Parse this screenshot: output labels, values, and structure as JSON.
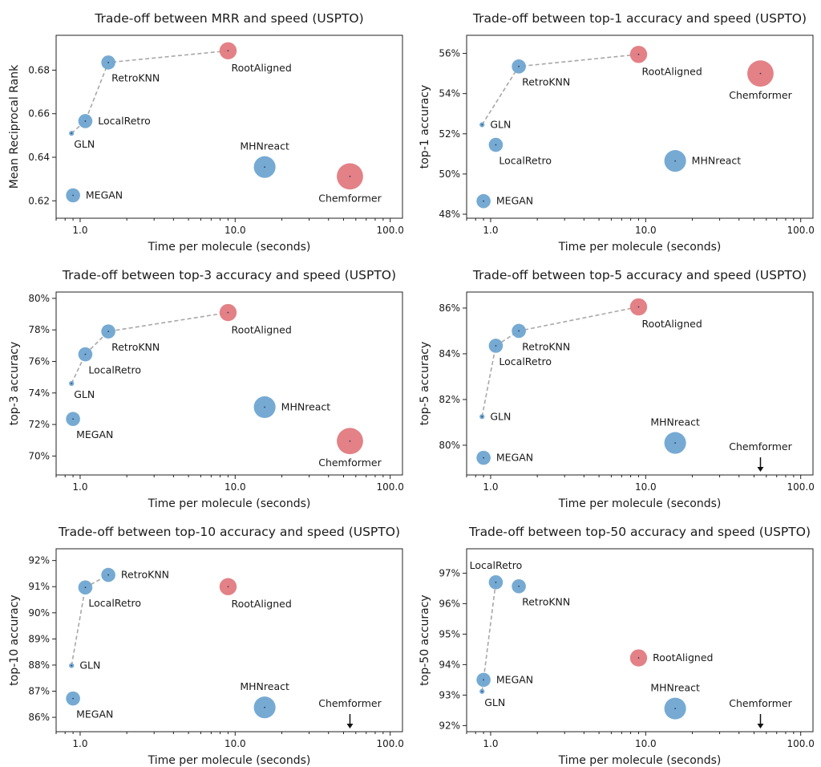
{
  "colors": {
    "fast_model": "#6fa5d1",
    "slow_model": "#e27a7f",
    "frontier_line": "#a8a8a8"
  },
  "chart_data": [
    {
      "type": "scatter",
      "title": "Trade-off between MRR and speed (USPTO)",
      "xlabel": "Time per molecule (seconds)",
      "ylabel": "Mean Reciprocal Rank",
      "x_scale": "log",
      "xlim": [
        0.7,
        120
      ],
      "ylim": [
        0.612,
        0.696
      ],
      "xticks": [
        1.0,
        10.0,
        100.0
      ],
      "xtick_labels": [
        "1.0",
        "10.0",
        "100.0"
      ],
      "yticks": [
        0.62,
        0.64,
        0.66,
        0.68
      ],
      "ytick_labels": [
        "0.62",
        "0.64",
        "0.66",
        "0.68"
      ],
      "frontier": [
        "GLN",
        "LocalRetro",
        "RetroKNN",
        "RootAligned"
      ],
      "points": [
        {
          "name": "GLN",
          "x": 0.88,
          "y": 0.651,
          "size": 2,
          "color": "#6fa5d1",
          "label_pos": "below"
        },
        {
          "name": "LocalRetro",
          "x": 1.08,
          "y": 0.6566,
          "size": 8,
          "color": "#6fa5d1",
          "label_pos": "right"
        },
        {
          "name": "RetroKNN",
          "x": 1.52,
          "y": 0.6835,
          "size": 8,
          "color": "#6fa5d1",
          "label_pos": "below-right"
        },
        {
          "name": "RootAligned",
          "x": 9.0,
          "y": 0.6889,
          "size": 10,
          "color": "#e27a7f",
          "label_pos": "below-right"
        },
        {
          "name": "MEGAN",
          "x": 0.9,
          "y": 0.6225,
          "size": 8,
          "color": "#6fa5d1",
          "label_pos": "right"
        },
        {
          "name": "MHNreact",
          "x": 15.5,
          "y": 0.6355,
          "size": 13,
          "color": "#6fa5d1",
          "label_pos": "above"
        },
        {
          "name": "Chemformer",
          "x": 55.0,
          "y": 0.6312,
          "size": 16,
          "color": "#e27a7f",
          "label_pos": "below"
        }
      ]
    },
    {
      "type": "scatter",
      "title": "Trade-off between top-1 accuracy and speed (USPTO)",
      "xlabel": "Time per molecule (seconds)",
      "ylabel": "top-1 accuracy",
      "x_scale": "log",
      "xlim": [
        0.7,
        120
      ],
      "ylim": [
        47.8,
        56.9
      ],
      "xticks": [
        1.0,
        10.0,
        100.0
      ],
      "xtick_labels": [
        "1.0",
        "10.0",
        "100.0"
      ],
      "yticks": [
        48,
        50,
        52,
        54,
        56
      ],
      "ytick_labels": [
        "48%",
        "50%",
        "52%",
        "54%",
        "56%"
      ],
      "frontier": [
        "GLN",
        "RetroKNN",
        "RootAligned"
      ],
      "points": [
        {
          "name": "GLN",
          "x": 0.88,
          "y": 52.45,
          "size": 2,
          "color": "#6fa5d1",
          "label_pos": "right"
        },
        {
          "name": "LocalRetro",
          "x": 1.08,
          "y": 51.45,
          "size": 8,
          "color": "#6fa5d1",
          "label_pos": "below-right"
        },
        {
          "name": "RetroKNN",
          "x": 1.52,
          "y": 55.35,
          "size": 8,
          "color": "#6fa5d1",
          "label_pos": "below-right"
        },
        {
          "name": "RootAligned",
          "x": 9.0,
          "y": 55.95,
          "size": 10,
          "color": "#e27a7f",
          "label_pos": "below-right"
        },
        {
          "name": "MEGAN",
          "x": 0.9,
          "y": 48.65,
          "size": 8,
          "color": "#6fa5d1",
          "label_pos": "right"
        },
        {
          "name": "MHNreact",
          "x": 15.5,
          "y": 50.65,
          "size": 13,
          "color": "#6fa5d1",
          "label_pos": "right"
        },
        {
          "name": "Chemformer",
          "x": 55.0,
          "y": 55.0,
          "size": 16,
          "color": "#e27a7f",
          "label_pos": "below"
        }
      ]
    },
    {
      "type": "scatter",
      "title": "Trade-off between top-3 accuracy and speed (USPTO)",
      "xlabel": "Time per molecule (seconds)",
      "ylabel": "top-3 accuracy",
      "x_scale": "log",
      "xlim": [
        0.7,
        120
      ],
      "ylim": [
        68.8,
        80.4
      ],
      "xticks": [
        1.0,
        10.0,
        100.0
      ],
      "xtick_labels": [
        "1.0",
        "10.0",
        "100.0"
      ],
      "yticks": [
        70,
        72,
        74,
        76,
        78,
        80
      ],
      "ytick_labels": [
        "70%",
        "72%",
        "74%",
        "76%",
        "78%",
        "80%"
      ],
      "frontier": [
        "GLN",
        "LocalRetro",
        "RetroKNN",
        "RootAligned"
      ],
      "points": [
        {
          "name": "GLN",
          "x": 0.88,
          "y": 74.6,
          "size": 2,
          "color": "#6fa5d1",
          "label_pos": "below"
        },
        {
          "name": "LocalRetro",
          "x": 1.08,
          "y": 76.45,
          "size": 8,
          "color": "#6fa5d1",
          "label_pos": "below-right"
        },
        {
          "name": "RetroKNN",
          "x": 1.52,
          "y": 77.9,
          "size": 8,
          "color": "#6fa5d1",
          "label_pos": "below-right"
        },
        {
          "name": "RootAligned",
          "x": 9.0,
          "y": 79.1,
          "size": 10,
          "color": "#e27a7f",
          "label_pos": "below-right"
        },
        {
          "name": "MEGAN",
          "x": 0.9,
          "y": 72.35,
          "size": 8,
          "color": "#6fa5d1",
          "label_pos": "below-right"
        },
        {
          "name": "MHNreact",
          "x": 15.5,
          "y": 73.1,
          "size": 13,
          "color": "#6fa5d1",
          "label_pos": "right"
        },
        {
          "name": "Chemformer",
          "x": 55.0,
          "y": 70.95,
          "size": 16,
          "color": "#e27a7f",
          "label_pos": "below"
        }
      ]
    },
    {
      "type": "scatter",
      "title": "Trade-off between top-5 accuracy and speed (USPTO)",
      "xlabel": "Time per molecule (seconds)",
      "ylabel": "top-5 accuracy",
      "x_scale": "log",
      "xlim": [
        0.7,
        120
      ],
      "ylim": [
        78.7,
        86.7
      ],
      "xticks": [
        1.0,
        10.0,
        100.0
      ],
      "xtick_labels": [
        "1.0",
        "10.0",
        "100.0"
      ],
      "yticks": [
        80,
        82,
        84,
        86
      ],
      "ytick_labels": [
        "80%",
        "82%",
        "84%",
        "86%"
      ],
      "frontier": [
        "GLN",
        "LocalRetro",
        "RetroKNN",
        "RootAligned"
      ],
      "off_chart": {
        "name": "Chemformer",
        "x": 55.0,
        "marker": "arrow-down"
      },
      "points": [
        {
          "name": "GLN",
          "x": 0.88,
          "y": 81.25,
          "size": 2,
          "color": "#6fa5d1",
          "label_pos": "right"
        },
        {
          "name": "LocalRetro",
          "x": 1.08,
          "y": 84.35,
          "size": 8,
          "color": "#6fa5d1",
          "label_pos": "below-right"
        },
        {
          "name": "RetroKNN",
          "x": 1.52,
          "y": 85.0,
          "size": 8,
          "color": "#6fa5d1",
          "label_pos": "below-right"
        },
        {
          "name": "RootAligned",
          "x": 9.0,
          "y": 86.05,
          "size": 10,
          "color": "#e27a7f",
          "label_pos": "below-right"
        },
        {
          "name": "MEGAN",
          "x": 0.9,
          "y": 79.45,
          "size": 8,
          "color": "#6fa5d1",
          "label_pos": "right"
        },
        {
          "name": "MHNreact",
          "x": 15.5,
          "y": 80.1,
          "size": 13,
          "color": "#6fa5d1",
          "label_pos": "above"
        }
      ]
    },
    {
      "type": "scatter",
      "title": "Trade-off between top-10 accuracy and speed (USPTO)",
      "xlabel": "Time per molecule (seconds)",
      "ylabel": "top-10 accuracy",
      "x_scale": "log",
      "xlim": [
        0.7,
        120
      ],
      "ylim": [
        85.45,
        92.45
      ],
      "xticks": [
        1.0,
        10.0,
        100.0
      ],
      "xtick_labels": [
        "1.0",
        "10.0",
        "100.0"
      ],
      "yticks": [
        86,
        87,
        88,
        89,
        90,
        91,
        92
      ],
      "ytick_labels": [
        "86%",
        "87%",
        "88%",
        "89%",
        "90%",
        "91%",
        "92%"
      ],
      "frontier": [
        "GLN",
        "LocalRetro",
        "RetroKNN"
      ],
      "off_chart": {
        "name": "Chemformer",
        "x": 55.0,
        "marker": "arrow-down"
      },
      "points": [
        {
          "name": "GLN",
          "x": 0.88,
          "y": 87.98,
          "size": 2,
          "color": "#6fa5d1",
          "label_pos": "right"
        },
        {
          "name": "LocalRetro",
          "x": 1.08,
          "y": 90.97,
          "size": 8,
          "color": "#6fa5d1",
          "label_pos": "below-right"
        },
        {
          "name": "RetroKNN",
          "x": 1.52,
          "y": 91.45,
          "size": 8,
          "color": "#6fa5d1",
          "label_pos": "right"
        },
        {
          "name": "RootAligned",
          "x": 9.0,
          "y": 91.0,
          "size": 10,
          "color": "#e27a7f",
          "label_pos": "below-right"
        },
        {
          "name": "MEGAN",
          "x": 0.9,
          "y": 86.72,
          "size": 8,
          "color": "#6fa5d1",
          "label_pos": "below-right"
        },
        {
          "name": "MHNreact",
          "x": 15.5,
          "y": 86.38,
          "size": 13,
          "color": "#6fa5d1",
          "label_pos": "above"
        }
      ]
    },
    {
      "type": "scatter",
      "title": "Trade-off between top-50 accuracy and speed (USPTO)",
      "xlabel": "Time per molecule (seconds)",
      "ylabel": "top-50 accuracy",
      "x_scale": "log",
      "xlim": [
        0.7,
        120
      ],
      "ylim": [
        91.8,
        97.8
      ],
      "xticks": [
        1.0,
        10.0,
        100.0
      ],
      "xtick_labels": [
        "1.0",
        "10.0",
        "100.0"
      ],
      "yticks": [
        92,
        93,
        94,
        95,
        96,
        97
      ],
      "ytick_labels": [
        "92%",
        "93%",
        "94%",
        "95%",
        "96%",
        "97%"
      ],
      "frontier": [
        "GLN",
        "LocalRetro"
      ],
      "off_chart": {
        "name": "Chemformer",
        "x": 55.0,
        "marker": "arrow-down"
      },
      "points": [
        {
          "name": "GLN",
          "x": 0.88,
          "y": 93.12,
          "size": 2,
          "color": "#6fa5d1",
          "label_pos": "below"
        },
        {
          "name": "LocalRetro",
          "x": 1.08,
          "y": 96.7,
          "size": 8,
          "color": "#6fa5d1",
          "label_pos": "above"
        },
        {
          "name": "RetroKNN",
          "x": 1.52,
          "y": 96.57,
          "size": 8,
          "color": "#6fa5d1",
          "label_pos": "below-right"
        },
        {
          "name": "RootAligned",
          "x": 9.0,
          "y": 94.22,
          "size": 10,
          "color": "#e27a7f",
          "label_pos": "right"
        },
        {
          "name": "MEGAN",
          "x": 0.9,
          "y": 93.5,
          "size": 8,
          "color": "#6fa5d1",
          "label_pos": "right"
        },
        {
          "name": "MHNreact",
          "x": 15.5,
          "y": 92.56,
          "size": 13,
          "color": "#6fa5d1",
          "label_pos": "above"
        }
      ]
    }
  ]
}
